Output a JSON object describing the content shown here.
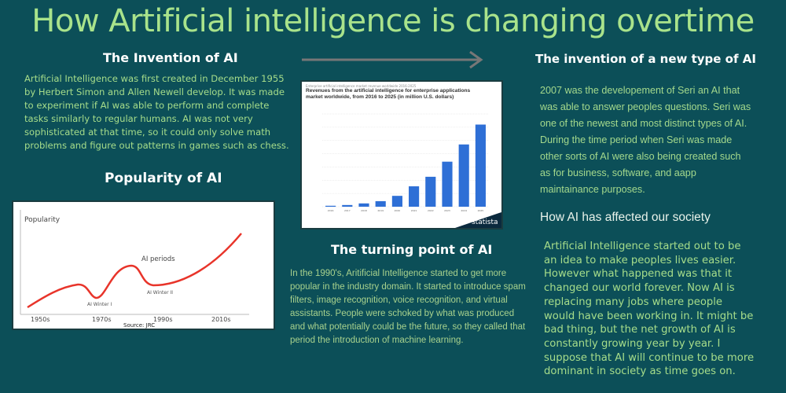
{
  "title": "How Artificial intelligence is changing overtime",
  "invention": {
    "heading": "The Invention of AI",
    "text": "Artificial Intelligence was first created in December 1955 by Herbert Simon and Allen Newell develop. It was made to experiment if AI was able to perform and complete tasks similarly to regular humans. AI was not very sophisticated at that time, so it could only solve  math problems and figure out patterns in games such as chess."
  },
  "popularity": {
    "heading": "Popularity of AI",
    "figure": {
      "ylabel": "Popularity",
      "annotation": "AI periods",
      "winter1": "AI Winter I",
      "winter2": "AI Winter II",
      "ticks": [
        "1950s",
        "1970s",
        "1990s",
        "2010s"
      ],
      "source": "Source: JRC",
      "line_color": "#e8342a"
    }
  },
  "revenue_figure": {
    "subtitle": "Enterprise artificial intelligence market revenue worldwide 2016-2025",
    "title": "Revenues from the artificial intelligence for enterprise applications market worldwide, from 2016 to 2025 (in million U.S. dollars)",
    "logo": "statista",
    "bar_color": "#2e6fd6",
    "categories": [
      "2016",
      "2017",
      "2018",
      "2019",
      "2020",
      "2021",
      "2022",
      "2023",
      "2024",
      "2025"
    ],
    "values": [
      358,
      641,
      1250,
      2100,
      4100,
      7700,
      11300,
      17000,
      23500,
      31000
    ],
    "ylim": [
      0,
      35000
    ]
  },
  "turning_point": {
    "heading": "The turning point of AI",
    "text": "In the 1990's, Aritificial Intelligence started to get more popular in the industry domain. It started to introduce spam filters, image recognition, voice recognition, and virtual assistants. People were schoked by what was produced and what potentially could be the future, so they called that period  the introduction of machine learning."
  },
  "new_type": {
    "heading": "The invention of a new type of AI",
    "text": "2007 was the developement of Seri an AI that was able to answer peoples questions.  Seri was one of the newest and most distinct types of AI. During the time period when Seri was made  other sorts of AI were also being created such as  for business, software, and aapp maintainance purposes."
  },
  "society": {
    "heading": "How AI has affected our society",
    "text": "Artificial Intelligence started out to be an idea to make peoples lives easier. However what happened was that it changed our world forever. Now AI is replacing many jobs where people would have been working in. It might be bad thing, but the net growth of AI is constantly growing year by year. I suppose that AI will continue to be more  dominant in society as time goes on."
  }
}
